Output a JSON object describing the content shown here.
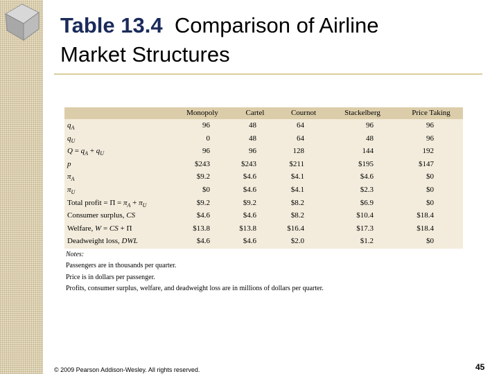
{
  "header": {
    "title_bold": "Table 13.4",
    "title_rest": "Comparison of Airline Market Structures"
  },
  "table": {
    "columns": [
      "Monopoly",
      "Cartel",
      "Cournot",
      "Stackelberg",
      "Price Taking"
    ],
    "rows": [
      {
        "label": [
          {
            "i": "q"
          },
          {
            "sub": "A"
          }
        ],
        "values": [
          "96",
          "48",
          "64",
          "96",
          "96"
        ]
      },
      {
        "label": [
          {
            "i": "q"
          },
          {
            "sub": "U"
          }
        ],
        "values": [
          "0",
          "48",
          "64",
          "48",
          "96"
        ]
      },
      {
        "label": [
          {
            "i": "Q"
          },
          " = ",
          {
            "i": "q"
          },
          {
            "sub": "A"
          },
          " + ",
          {
            "i": "q"
          },
          {
            "sub": "U"
          }
        ],
        "values": [
          "96",
          "96",
          "128",
          "144",
          "192"
        ]
      },
      {
        "label": [
          {
            "i": "p"
          }
        ],
        "values": [
          "$243",
          "$243",
          "$211",
          "$195",
          "$147"
        ]
      },
      {
        "label": [
          {
            "i": "π"
          },
          {
            "sub": "A"
          }
        ],
        "values": [
          "$9.2",
          "$4.6",
          "$4.1",
          "$4.6",
          "$0"
        ]
      },
      {
        "label": [
          {
            "i": "π"
          },
          {
            "sub": "U"
          }
        ],
        "values": [
          "$0",
          "$4.6",
          "$4.1",
          "$2.3",
          "$0"
        ]
      },
      {
        "label": [
          "Total profit = Π = ",
          {
            "i": "π"
          },
          {
            "sub": "A"
          },
          " + ",
          {
            "i": "π"
          },
          {
            "sub": "U"
          }
        ],
        "values": [
          "$9.2",
          "$9.2",
          "$8.2",
          "$6.9",
          "$0"
        ]
      },
      {
        "label": [
          "Consumer surplus, ",
          {
            "i": "CS"
          }
        ],
        "values": [
          "$4.6",
          "$4.6",
          "$8.2",
          "$10.4",
          "$18.4"
        ]
      },
      {
        "label": [
          "Welfare, ",
          {
            "i": "W"
          },
          " = ",
          {
            "i": "CS"
          },
          " + Π"
        ],
        "values": [
          "$13.8",
          "$13.8",
          "$16.4",
          "$17.3",
          "$18.4"
        ]
      },
      {
        "label": [
          "Deadweight loss, ",
          {
            "i": "DWL"
          }
        ],
        "values": [
          "$4.6",
          "$4.6",
          "$2.0",
          "$1.2",
          "$0"
        ]
      }
    ]
  },
  "notes": {
    "heading": "Notes:",
    "lines": [
      "Passengers are in thousands per quarter.",
      "Price is in dollars per passenger.",
      "Profits, consumer surplus, welfare, and deadweight loss are in millions of dollars per quarter."
    ]
  },
  "footer": {
    "copyright": "© 2009 Pearson Addison-Wesley. All rights reserved.",
    "page": "45"
  }
}
